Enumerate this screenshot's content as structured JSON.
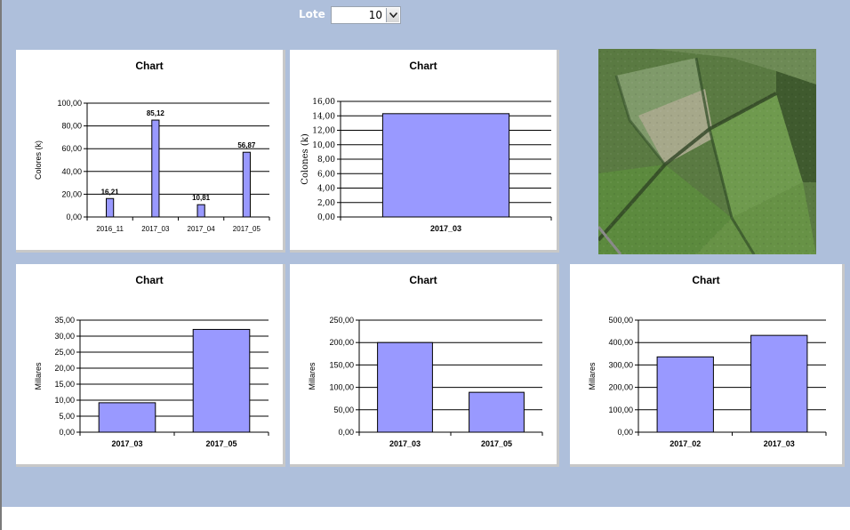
{
  "filter": {
    "label": "Lote",
    "selected": "10"
  },
  "photo": {
    "description": "aerial-field-photo"
  },
  "colors": {
    "background": "#aebfdb",
    "bar": "#9999ff",
    "bar_stroke": "#000000"
  },
  "chart_data": [
    {
      "type": "bar",
      "title": "Chart",
      "xlabel": "",
      "ylabel": "Colores (k)",
      "categories": [
        "2016_11",
        "2017_03",
        "2017_04",
        "2017_05"
      ],
      "values": [
        16.21,
        85.12,
        10.81,
        56.87
      ],
      "data_labels": [
        "16,21",
        "85,12",
        "10,81",
        "56,87"
      ],
      "yticks": [
        "0,00",
        "20,00",
        "40,00",
        "60,00",
        "80,00",
        "100,00"
      ],
      "ylim": [
        0,
        100
      ],
      "grid": true
    },
    {
      "type": "bar",
      "title": "Chart",
      "xlabel": "",
      "ylabel": "Colones (k)",
      "categories": [
        "2017_03"
      ],
      "values": [
        14.3
      ],
      "yticks": [
        "0,00",
        "2,00",
        "4,00",
        "6,00",
        "8,00",
        "10,00",
        "12,00",
        "14,00",
        "16,00"
      ],
      "ylim": [
        0,
        16
      ],
      "grid": true
    },
    {
      "type": "bar",
      "title": "Chart",
      "xlabel": "",
      "ylabel": "Millares",
      "categories": [
        "2017_03",
        "2017_05"
      ],
      "values": [
        9.2,
        32.1
      ],
      "yticks": [
        "0,00",
        "5,00",
        "10,00",
        "15,00",
        "20,00",
        "25,00",
        "30,00",
        "35,00"
      ],
      "ylim": [
        0,
        35
      ],
      "grid": true
    },
    {
      "type": "bar",
      "title": "Chart",
      "xlabel": "",
      "ylabel": "Millares",
      "categories": [
        "2017_03",
        "2017_05"
      ],
      "values": [
        200,
        89
      ],
      "yticks": [
        "0,00",
        "50,00",
        "100,00",
        "150,00",
        "200,00",
        "250,00"
      ],
      "ylim": [
        0,
        250
      ],
      "grid": true
    },
    {
      "type": "bar",
      "title": "Chart",
      "xlabel": "",
      "ylabel": "Millares",
      "categories": [
        "2017_02",
        "2017_03"
      ],
      "values": [
        336,
        432
      ],
      "yticks": [
        "0,00",
        "100,00",
        "200,00",
        "300,00",
        "400,00",
        "500,00"
      ],
      "ylim": [
        0,
        500
      ],
      "grid": true
    }
  ]
}
